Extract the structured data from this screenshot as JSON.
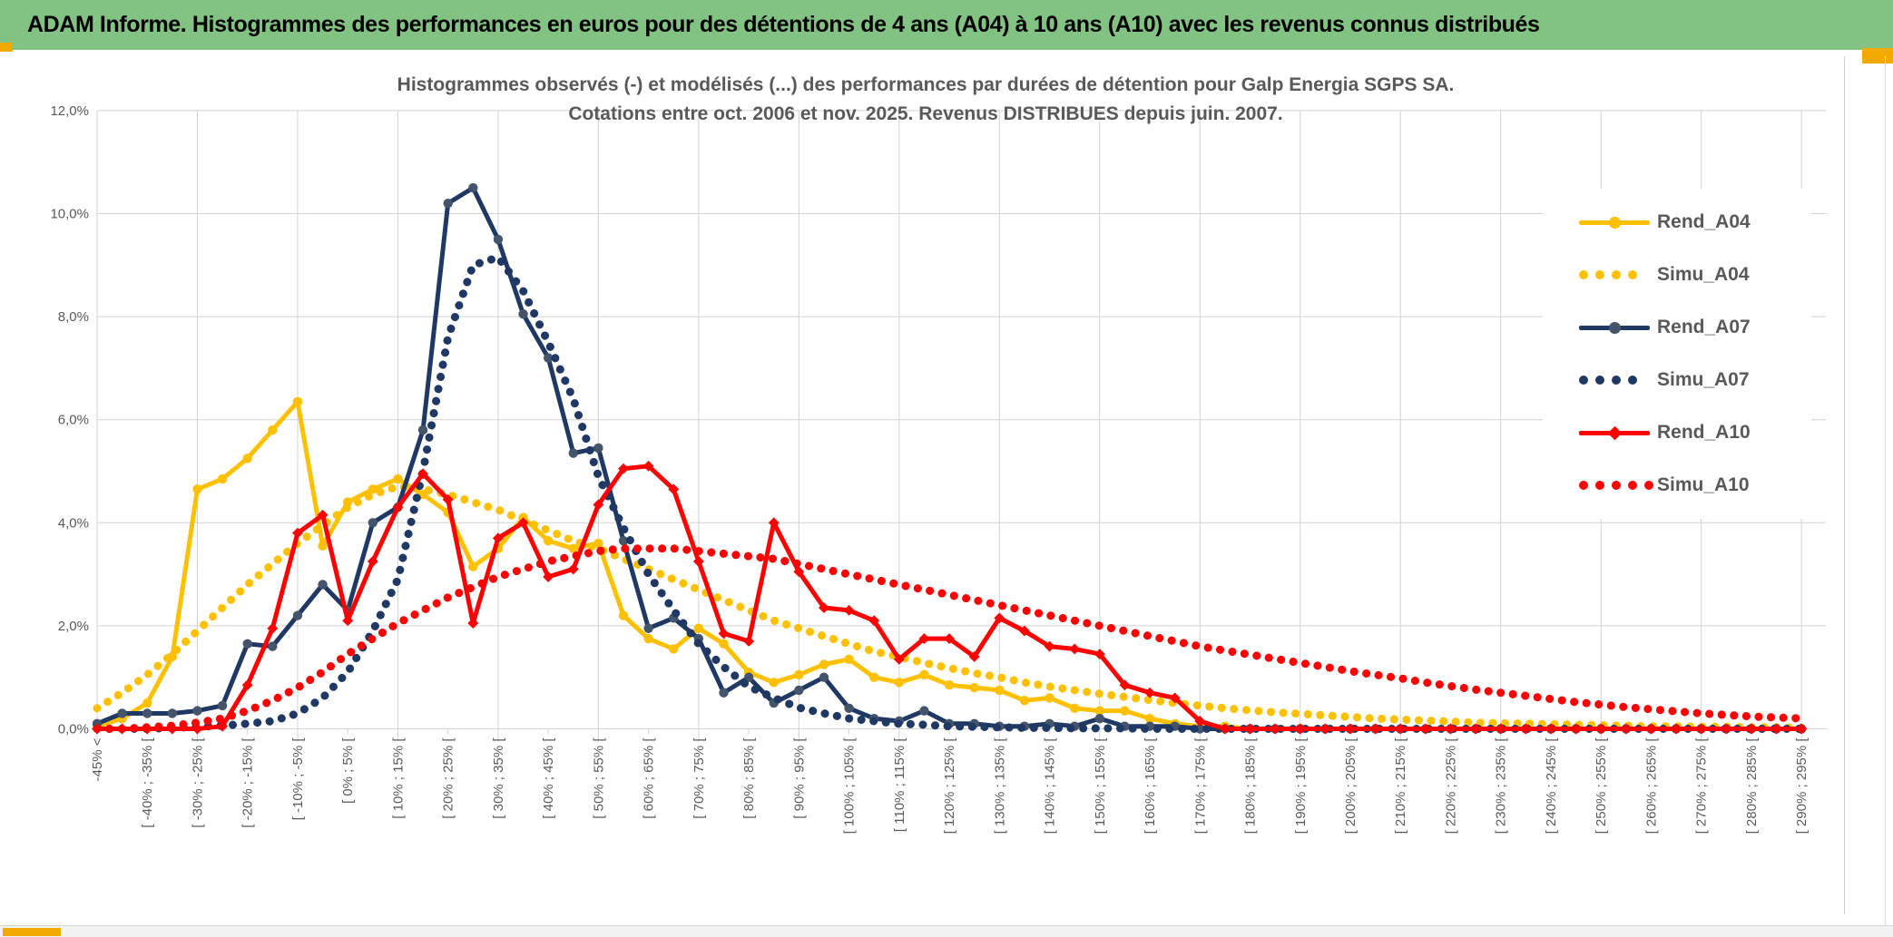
{
  "header": {
    "title": "ADAM Informe. Histogrammes des performances en euros pour des détentions de 4 ans (A04) à 10 ans (A10) avec les revenus connus distribués",
    "bg_color": "#82C282",
    "accent_color": "#F2A900"
  },
  "chart_data": {
    "type": "line",
    "title_line1": "Histogrammes observés (-) et modélisés (...) des performances par durées de détention pour Galp Energia SGPS SA.",
    "title_line2": "Cotations entre oct. 2006 et nov. 2025. Revenus DISTRIBUES depuis juin. 2007.",
    "ylabel": "",
    "xlabel": "",
    "ylim": [
      0,
      12
    ],
    "y_tick_labels": [
      "0,0%",
      "2,0%",
      "4,0%",
      "6,0%",
      "8,0%",
      "10,0%",
      "12,0%"
    ],
    "grid": "both",
    "legend_position": "right-overlay",
    "n_bins": 69,
    "x_labels_every_n_bins": 2,
    "x_labels": [
      "-45% <",
      "[ -40% ; -35% [",
      "[ -30% ; -25% [",
      "[ -20% ; -15% [",
      "[ -10% ; -5% [",
      "[ 0% ; 5% [",
      "[ 10% ; 15% [",
      "[ 20% ; 25% [",
      "[ 30% ; 35% [",
      "[ 40% ; 45% [",
      "[ 50% ; 55% [",
      "[ 60% ; 65% [",
      "[ 70% ; 75% [",
      "[ 80% ; 85% [",
      "[ 90% ; 95% [",
      "[ 100% ; 105% [",
      "[ 110% ; 115% [",
      "[ 120% ; 125% [",
      "[ 130% ; 135% [",
      "[ 140% ; 145% [",
      "[ 150% ; 155% [",
      "[ 160% ; 165% [",
      "[ 170% ; 175% [",
      "[ 180% ; 185% [",
      "[ 190% ; 195% [",
      "[ 200% ; 205% [",
      "[ 210% ; 215% [",
      "[ 220% ; 225% [",
      "[ 230% ; 235% [",
      "[ 240% ; 245% [",
      "[ 250% ; 255% [",
      "[ 260% ; 265% [",
      "[ 270% ; 275% [",
      "[ 280% ; 285% [",
      "[ 290% ; 295% ["
    ],
    "series": [
      {
        "name": "Rend_A04",
        "color": "#FFC000",
        "style": "solid",
        "marker": "circle",
        "marker_color": "#FFC000",
        "values": [
          0.05,
          0.2,
          0.5,
          1.4,
          4.65,
          4.85,
          5.25,
          5.8,
          6.35,
          3.55,
          4.4,
          4.65,
          4.85,
          4.55,
          4.2,
          3.15,
          3.5,
          4.1,
          3.65,
          3.5,
          3.6,
          2.2,
          1.75,
          1.55,
          1.95,
          1.65,
          1.1,
          0.9,
          1.05,
          1.25,
          1.35,
          1.0,
          0.9,
          1.05,
          0.85,
          0.8,
          0.75,
          0.55,
          0.6,
          0.4,
          0.35,
          0.35,
          0.2,
          0.1,
          0.05,
          0.05,
          0,
          0,
          0,
          0,
          0,
          0,
          0,
          0,
          0,
          0,
          0,
          0,
          0,
          0,
          0,
          0,
          0,
          0,
          0,
          0,
          0,
          0,
          0
        ]
      },
      {
        "name": "Simu_A04",
        "color": "#FFC000",
        "style": "dotted",
        "values": [
          0.4,
          0.7,
          1.05,
          1.45,
          1.9,
          2.35,
          2.8,
          3.2,
          3.6,
          3.95,
          4.3,
          4.55,
          4.7,
          4.65,
          4.55,
          4.4,
          4.25,
          4.05,
          3.85,
          3.65,
          3.5,
          3.3,
          3.1,
          2.9,
          2.7,
          2.5,
          2.3,
          2.1,
          1.95,
          1.8,
          1.65,
          1.5,
          1.4,
          1.28,
          1.18,
          1.08,
          1.0,
          0.9,
          0.82,
          0.75,
          0.68,
          0.62,
          0.56,
          0.5,
          0.45,
          0.4,
          0.36,
          0.32,
          0.29,
          0.26,
          0.23,
          0.2,
          0.18,
          0.16,
          0.14,
          0.12,
          0.11,
          0.1,
          0.09,
          0.08,
          0.07,
          0.06,
          0.05,
          0.05,
          0.04,
          0.04,
          0.03,
          0.03,
          0.02
        ]
      },
      {
        "name": "Rend_A07",
        "color": "#1F3864",
        "style": "solid",
        "marker": "circle",
        "marker_color": "#44546A",
        "values": [
          0.1,
          0.3,
          0.3,
          0.3,
          0.35,
          0.45,
          1.65,
          1.6,
          2.2,
          2.8,
          2.3,
          4.0,
          4.3,
          5.8,
          10.2,
          10.5,
          9.5,
          8.05,
          7.2,
          5.35,
          5.45,
          3.65,
          1.95,
          2.15,
          1.75,
          0.7,
          1.0,
          0.5,
          0.75,
          1.0,
          0.4,
          0.2,
          0.15,
          0.35,
          0.1,
          0.1,
          0.05,
          0.05,
          0.1,
          0.05,
          0.2,
          0.05,
          0.05,
          0.05,
          0,
          0,
          0,
          0,
          0,
          0,
          0,
          0,
          0,
          0,
          0,
          0,
          0,
          0,
          0,
          0,
          0,
          0,
          0,
          0,
          0,
          0,
          0,
          0,
          0
        ]
      },
      {
        "name": "Simu_A07",
        "color": "#1F3864",
        "style": "dotted",
        "values": [
          0,
          0,
          0,
          0.02,
          0.04,
          0.06,
          0.1,
          0.15,
          0.3,
          0.6,
          1.1,
          1.9,
          2.9,
          5.0,
          7.6,
          9.0,
          9.15,
          8.5,
          7.5,
          6.4,
          4.9,
          3.9,
          3.0,
          2.3,
          1.65,
          1.2,
          0.82,
          0.6,
          0.41,
          0.3,
          0.2,
          0.15,
          0.1,
          0.08,
          0.05,
          0.04,
          0.03,
          0.02,
          0.02,
          0.01,
          0.01,
          0.01,
          0,
          0,
          0,
          0,
          0,
          0,
          0,
          0,
          0,
          0,
          0,
          0,
          0,
          0,
          0,
          0,
          0,
          0,
          0,
          0,
          0,
          0,
          0,
          0,
          0,
          0,
          0
        ]
      },
      {
        "name": "Rend_A10",
        "color": "#FF0000",
        "style": "solid",
        "marker": "diamond",
        "marker_color": "#FF0000",
        "values": [
          0,
          0,
          0,
          0,
          0,
          0.05,
          0.85,
          1.95,
          3.8,
          4.15,
          2.1,
          3.25,
          4.3,
          4.95,
          4.45,
          2.05,
          3.7,
          4.0,
          2.95,
          3.1,
          4.35,
          5.05,
          5.1,
          4.65,
          3.25,
          1.85,
          1.7,
          4.0,
          3.05,
          2.35,
          2.3,
          2.1,
          1.35,
          1.75,
          1.75,
          1.4,
          2.15,
          1.9,
          1.6,
          1.55,
          1.45,
          0.85,
          0.7,
          0.6,
          0.15,
          0,
          0,
          0,
          0,
          0,
          0,
          0,
          0,
          0,
          0,
          0,
          0,
          0,
          0,
          0,
          0,
          0,
          0,
          0,
          0,
          0,
          0,
          0,
          0
        ]
      },
      {
        "name": "Simu_A10",
        "color": "#FF0000",
        "style": "dotted",
        "values": [
          0,
          0,
          0.03,
          0.06,
          0.12,
          0.2,
          0.35,
          0.55,
          0.8,
          1.1,
          1.45,
          1.75,
          2.05,
          2.3,
          2.55,
          2.75,
          2.95,
          3.1,
          3.25,
          3.35,
          3.45,
          3.5,
          3.5,
          3.5,
          3.45,
          3.4,
          3.35,
          3.3,
          3.2,
          3.1,
          3.0,
          2.9,
          2.8,
          2.7,
          2.6,
          2.5,
          2.4,
          2.3,
          2.2,
          2.1,
          2.0,
          1.9,
          1.8,
          1.7,
          1.6,
          1.52,
          1.44,
          1.36,
          1.28,
          1.2,
          1.12,
          1.05,
          0.98,
          0.9,
          0.83,
          0.76,
          0.7,
          0.64,
          0.58,
          0.52,
          0.47,
          0.42,
          0.38,
          0.34,
          0.3,
          0.27,
          0.24,
          0.22,
          0.2
        ]
      }
    ],
    "axis_color": "#595959",
    "grid_color": "#d2d2d2"
  }
}
